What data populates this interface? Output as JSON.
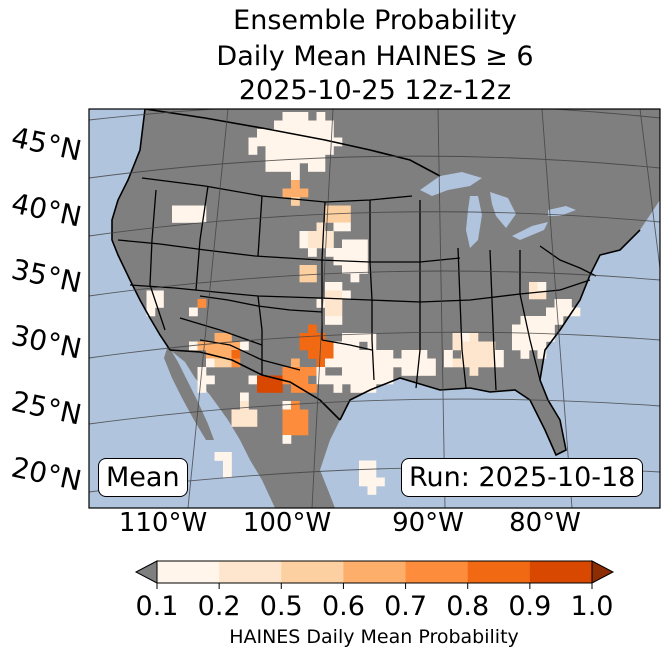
{
  "title": {
    "line1": "Ensemble Probability",
    "line2": "Daily Mean HAINES ≥ 6",
    "line3": "2025-10-25 12z-12z"
  },
  "map": {
    "region": "CONUS",
    "lat_labels": [
      "45°N",
      "40°N",
      "35°N",
      "30°N",
      "25°N",
      "20°N"
    ],
    "lon_labels": [
      "110°W",
      "100°W",
      "90°W",
      "80°W"
    ],
    "ocean_color": "#b0c4de",
    "land_no_data_color": "#7f7f7f",
    "mean_label": "Mean",
    "run_label": "Run: 2025-10-18"
  },
  "colorbar": {
    "ticks": [
      "0.1",
      "0.2",
      "0.5",
      "0.6",
      "0.7",
      "0.8",
      "0.9",
      "1.0"
    ],
    "colors": [
      "#fff5eb",
      "#fee6ce",
      "#fdd0a2",
      "#fdae6b",
      "#fd8d3c",
      "#f16913",
      "#d94801"
    ],
    "under_color": "#7f7f7f",
    "over_color": "#8c2d04",
    "label": "HAINES Daily Mean Probability"
  }
}
